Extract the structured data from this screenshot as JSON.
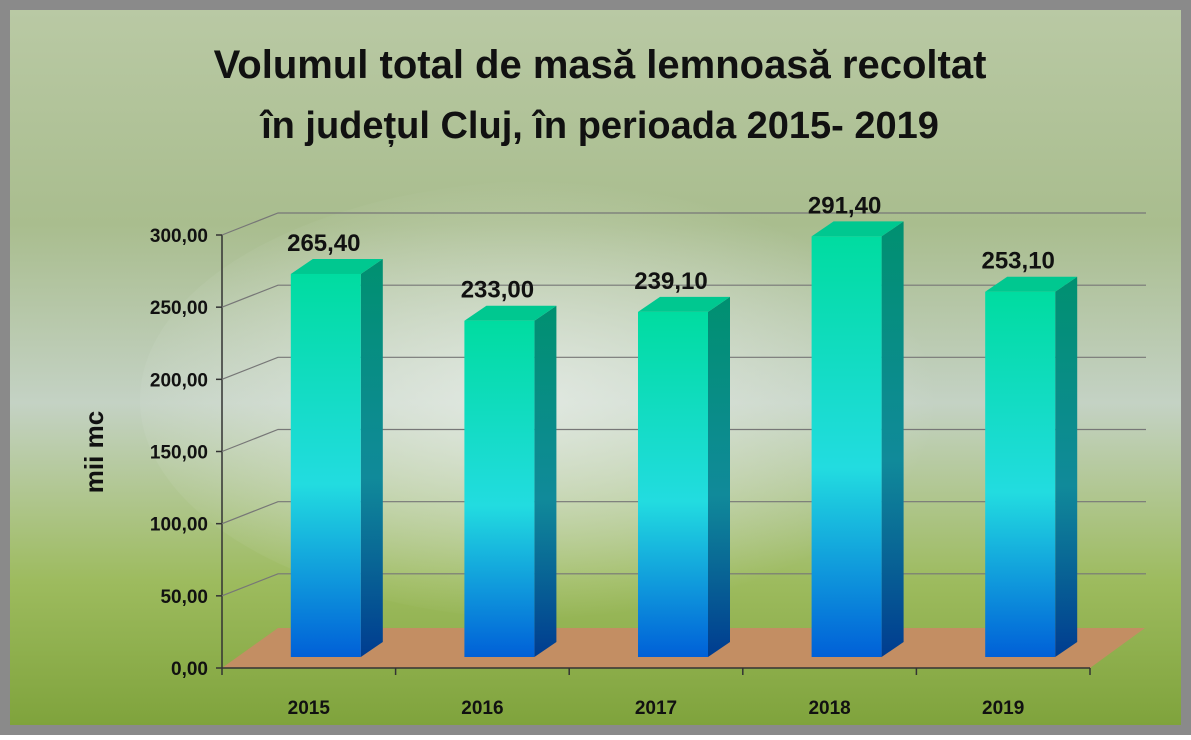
{
  "chart_data": {
    "type": "bar3d",
    "title": [
      "Volumul total de masă lemnoasă recoltat",
      "în județul Cluj, în perioada 2015- 2019"
    ],
    "y_label": "mii mc",
    "categories": [
      "2015",
      "2016",
      "2017",
      "2018",
      "2019"
    ],
    "values": [
      265.4,
      233,
      239.1,
      291.4,
      253.1
    ],
    "value_labels": [
      "265,40",
      "233,00",
      "239,10",
      "291,40",
      "253,10"
    ],
    "ylim": [
      0,
      300
    ],
    "yticks": [
      {
        "value": 0,
        "label": "0,00"
      },
      {
        "value": 50,
        "label": "50,00"
      },
      {
        "value": 100,
        "label": "100,00"
      },
      {
        "value": 150,
        "label": "150,00"
      },
      {
        "value": 200,
        "label": "200,00"
      },
      {
        "value": 250,
        "label": "250,00"
      },
      {
        "value": 300,
        "label": "300,00"
      }
    ],
    "grid": true
  }
}
